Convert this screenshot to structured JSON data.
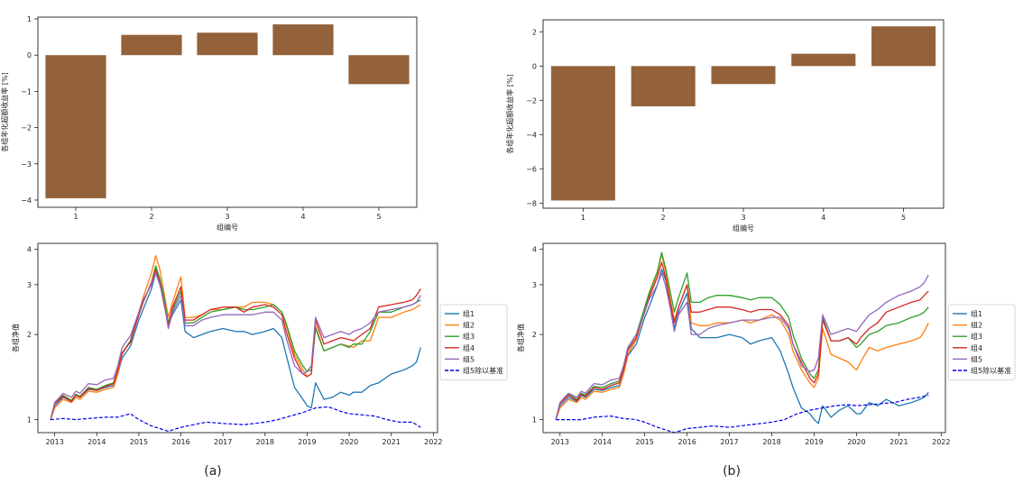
{
  "colors": {
    "bar": "#93623a",
    "axis": "#222222",
    "series": [
      "#1f77b4",
      "#ff7f0e",
      "#2ca02c",
      "#d62728",
      "#9467bd"
    ],
    "benchmark": "#0000ee"
  },
  "panel_labels": [
    "(a)",
    "(b)"
  ],
  "chart_data": [
    {
      "id": "a-bar",
      "type": "bar",
      "categories": [
        "1",
        "2",
        "3",
        "4",
        "5"
      ],
      "values": [
        -3.95,
        0.56,
        0.62,
        0.85,
        -0.8
      ],
      "xlabel": "组编号",
      "ylabel": "各组年化超额收益率 [%]",
      "ylim": [
        -4.2,
        1.05
      ],
      "yticks": [
        -4,
        -3,
        -2,
        -1,
        0,
        1
      ],
      "ytick_labels": [
        "−4",
        "−3",
        "−2",
        "−1",
        "0",
        "1"
      ]
    },
    {
      "id": "b-bar",
      "type": "bar",
      "categories": [
        "1",
        "2",
        "3",
        "4",
        "5"
      ],
      "values": [
        -7.85,
        -2.35,
        -1.05,
        0.72,
        2.32
      ],
      "xlabel": "组编号",
      "ylabel": "各组年化超额收益率 [%]",
      "ylim": [
        -8.3,
        2.7
      ],
      "yticks": [
        -8,
        -6,
        -4,
        -2,
        0,
        2
      ],
      "ytick_labels": [
        "−8",
        "−6",
        "−4",
        "−2",
        "0",
        "2"
      ]
    },
    {
      "id": "a-line",
      "type": "line",
      "yscale": "log",
      "ylabel": "各组净值",
      "xlim": [
        2012.6,
        2022.1
      ],
      "ylim": [
        0.9,
        4.2
      ],
      "xticks": [
        2013,
        2014,
        2015,
        2016,
        2017,
        2018,
        2019,
        2020,
        2021,
        2022
      ],
      "xtick_labels": [
        "2013",
        "2014",
        "2015",
        "2016",
        "2017",
        "2018",
        "2019",
        "2020",
        "2021",
        "2022"
      ],
      "yticks": [
        1,
        2,
        3,
        4
      ],
      "ytick_labels": [
        "1",
        "2",
        "3",
        "4"
      ],
      "x": [
        2012.9,
        2013.0,
        2013.2,
        2013.4,
        2013.5,
        2013.6,
        2013.8,
        2014.0,
        2014.2,
        2014.4,
        2014.5,
        2014.6,
        2014.8,
        2015.0,
        2015.1,
        2015.3,
        2015.4,
        2015.5,
        2015.6,
        2015.7,
        2015.8,
        2016.0,
        2016.1,
        2016.3,
        2016.5,
        2016.7,
        2017.0,
        2017.3,
        2017.5,
        2017.7,
        2018.0,
        2018.2,
        2018.4,
        2018.5,
        2018.7,
        2018.9,
        2019.0,
        2019.1,
        2019.2,
        2019.4,
        2019.6,
        2019.8,
        2020.0,
        2020.1,
        2020.3,
        2020.5,
        2020.7,
        2021.0,
        2021.3,
        2021.5,
        2021.6,
        2021.7
      ],
      "series": [
        {
          "name": "组1",
          "values": [
            1.0,
            1.12,
            1.2,
            1.16,
            1.22,
            1.2,
            1.28,
            1.27,
            1.3,
            1.32,
            1.45,
            1.65,
            1.82,
            2.25,
            2.45,
            2.9,
            3.3,
            3.05,
            2.6,
            2.15,
            2.35,
            2.65,
            2.05,
            1.95,
            2.0,
            2.05,
            2.1,
            2.05,
            2.05,
            2.0,
            2.05,
            2.1,
            1.95,
            1.7,
            1.3,
            1.18,
            1.12,
            1.1,
            1.35,
            1.18,
            1.2,
            1.25,
            1.22,
            1.25,
            1.25,
            1.32,
            1.35,
            1.45,
            1.5,
            1.55,
            1.6,
            1.8
          ]
        },
        {
          "name": "组2",
          "values": [
            1.0,
            1.1,
            1.18,
            1.15,
            1.2,
            1.18,
            1.26,
            1.25,
            1.28,
            1.3,
            1.45,
            1.7,
            1.9,
            2.4,
            2.7,
            3.3,
            3.8,
            3.4,
            2.8,
            2.3,
            2.6,
            3.2,
            2.3,
            2.3,
            2.35,
            2.45,
            2.45,
            2.5,
            2.5,
            2.6,
            2.6,
            2.55,
            2.4,
            2.15,
            1.7,
            1.5,
            1.42,
            1.45,
            2.15,
            1.75,
            1.8,
            1.85,
            1.82,
            1.8,
            1.9,
            1.9,
            2.3,
            2.3,
            2.4,
            2.45,
            2.5,
            2.55
          ]
        },
        {
          "name": "组3",
          "values": [
            1.0,
            1.15,
            1.22,
            1.17,
            1.23,
            1.21,
            1.3,
            1.28,
            1.32,
            1.35,
            1.5,
            1.72,
            1.9,
            2.35,
            2.6,
            3.05,
            3.5,
            3.15,
            2.7,
            2.2,
            2.45,
            2.85,
            2.2,
            2.2,
            2.3,
            2.4,
            2.45,
            2.5,
            2.45,
            2.45,
            2.5,
            2.55,
            2.4,
            2.2,
            1.75,
            1.55,
            1.48,
            1.5,
            2.1,
            1.75,
            1.8,
            1.85,
            1.8,
            1.85,
            1.85,
            2.05,
            2.4,
            2.4,
            2.5,
            2.55,
            2.6,
            2.65
          ]
        },
        {
          "name": "组4",
          "values": [
            1.0,
            1.14,
            1.21,
            1.16,
            1.22,
            1.2,
            1.29,
            1.27,
            1.31,
            1.34,
            1.5,
            1.72,
            1.88,
            2.35,
            2.6,
            3.05,
            3.4,
            3.05,
            2.55,
            2.15,
            2.5,
            2.95,
            2.25,
            2.25,
            2.35,
            2.45,
            2.5,
            2.5,
            2.4,
            2.5,
            2.55,
            2.5,
            2.35,
            2.05,
            1.65,
            1.45,
            1.42,
            1.45,
            2.25,
            1.85,
            1.9,
            1.95,
            1.92,
            1.9,
            2.0,
            2.1,
            2.5,
            2.55,
            2.6,
            2.65,
            2.75,
            2.9
          ]
        },
        {
          "name": "组5",
          "values": [
            1.0,
            1.15,
            1.24,
            1.2,
            1.26,
            1.24,
            1.34,
            1.33,
            1.38,
            1.4,
            1.55,
            1.8,
            1.98,
            2.4,
            2.65,
            3.0,
            3.3,
            3.0,
            2.6,
            2.1,
            2.4,
            2.75,
            2.15,
            2.15,
            2.25,
            2.3,
            2.35,
            2.35,
            2.35,
            2.35,
            2.4,
            2.4,
            2.25,
            1.95,
            1.55,
            1.45,
            1.48,
            1.55,
            2.3,
            1.95,
            2.0,
            2.05,
            2.0,
            2.05,
            2.1,
            2.2,
            2.4,
            2.45,
            2.5,
            2.55,
            2.6,
            2.75
          ]
        }
      ],
      "benchmark": {
        "name": "组5除以基准",
        "x": [
          2012.9,
          2013.2,
          2013.5,
          2013.8,
          2014.2,
          2014.5,
          2014.8,
          2015.0,
          2015.3,
          2015.5,
          2015.7,
          2016.0,
          2016.3,
          2016.6,
          2017.0,
          2017.5,
          2018.0,
          2018.3,
          2018.6,
          2018.9,
          2019.2,
          2019.5,
          2019.8,
          2020.0,
          2020.3,
          2020.6,
          2020.9,
          2021.2,
          2021.5,
          2021.7
        ],
        "values": [
          1.0,
          1.01,
          1.0,
          1.01,
          1.02,
          1.02,
          1.05,
          1.0,
          0.95,
          0.93,
          0.91,
          0.94,
          0.96,
          0.98,
          0.97,
          0.96,
          0.98,
          1.0,
          1.03,
          1.06,
          1.1,
          1.11,
          1.07,
          1.05,
          1.04,
          1.03,
          1.0,
          0.98,
          0.98,
          0.94
        ]
      },
      "legend": [
        "组1",
        "组2",
        "组3",
        "组4",
        "组5",
        "组5除以基准"
      ]
    },
    {
      "id": "b-line",
      "type": "line",
      "yscale": "log",
      "ylabel": "各组净值",
      "xlim": [
        2012.6,
        2022.1
      ],
      "ylim": [
        0.9,
        4.2
      ],
      "xticks": [
        2013,
        2014,
        2015,
        2016,
        2017,
        2018,
        2019,
        2020,
        2021,
        2022
      ],
      "xtick_labels": [
        "2013",
        "2014",
        "2015",
        "2016",
        "2017",
        "2018",
        "2019",
        "2020",
        "2021",
        "2022"
      ],
      "yticks": [
        1,
        2,
        3,
        4
      ],
      "ytick_labels": [
        "1",
        "2",
        "3",
        "4"
      ],
      "x": [
        2012.9,
        2013.0,
        2013.2,
        2013.4,
        2013.5,
        2013.6,
        2013.8,
        2014.0,
        2014.2,
        2014.4,
        2014.5,
        2014.6,
        2014.8,
        2015.0,
        2015.1,
        2015.3,
        2015.4,
        2015.5,
        2015.6,
        2015.7,
        2015.8,
        2016.0,
        2016.1,
        2016.3,
        2016.5,
        2016.7,
        2017.0,
        2017.3,
        2017.5,
        2017.7,
        2018.0,
        2018.2,
        2018.4,
        2018.5,
        2018.7,
        2018.9,
        2019.0,
        2019.1,
        2019.2,
        2019.4,
        2019.6,
        2019.8,
        2020.0,
        2020.1,
        2020.3,
        2020.5,
        2020.7,
        2021.0,
        2021.3,
        2021.5,
        2021.6,
        2021.7
      ],
      "series": [
        {
          "name": "组1",
          "values": [
            1.0,
            1.12,
            1.2,
            1.16,
            1.22,
            1.2,
            1.28,
            1.27,
            1.3,
            1.32,
            1.45,
            1.68,
            1.85,
            2.3,
            2.5,
            3.0,
            3.4,
            3.1,
            2.6,
            2.1,
            2.4,
            2.8,
            2.1,
            1.95,
            1.95,
            1.95,
            2.0,
            1.95,
            1.85,
            1.9,
            1.95,
            1.75,
            1.45,
            1.3,
            1.1,
            1.05,
            1.0,
            0.97,
            1.12,
            1.02,
            1.08,
            1.12,
            1.05,
            1.05,
            1.15,
            1.12,
            1.18,
            1.12,
            1.15,
            1.18,
            1.2,
            1.25
          ]
        },
        {
          "name": "组2",
          "values": [
            1.0,
            1.1,
            1.18,
            1.15,
            1.2,
            1.18,
            1.26,
            1.25,
            1.28,
            1.3,
            1.45,
            1.7,
            1.92,
            2.45,
            2.75,
            3.3,
            3.85,
            3.3,
            2.7,
            2.25,
            2.5,
            3.0,
            2.2,
            2.15,
            2.15,
            2.2,
            2.2,
            2.25,
            2.2,
            2.25,
            2.35,
            2.25,
            2.0,
            1.75,
            1.5,
            1.35,
            1.3,
            1.4,
            2.1,
            1.7,
            1.65,
            1.6,
            1.5,
            1.6,
            1.8,
            1.75,
            1.8,
            1.85,
            1.9,
            1.95,
            2.05,
            2.2
          ]
        },
        {
          "name": "组3",
          "values": [
            1.0,
            1.15,
            1.23,
            1.18,
            1.24,
            1.22,
            1.31,
            1.3,
            1.34,
            1.37,
            1.52,
            1.78,
            2.0,
            2.5,
            2.8,
            3.35,
            3.9,
            3.4,
            2.85,
            2.4,
            2.7,
            3.3,
            2.6,
            2.6,
            2.7,
            2.75,
            2.75,
            2.7,
            2.65,
            2.7,
            2.7,
            2.55,
            2.3,
            2.0,
            1.65,
            1.45,
            1.4,
            1.5,
            2.3,
            1.9,
            1.9,
            1.95,
            1.8,
            1.85,
            2.0,
            2.05,
            2.15,
            2.2,
            2.3,
            2.35,
            2.4,
            2.5
          ]
        },
        {
          "name": "组4",
          "values": [
            1.0,
            1.14,
            1.22,
            1.17,
            1.23,
            1.21,
            1.3,
            1.28,
            1.32,
            1.35,
            1.5,
            1.75,
            1.95,
            2.4,
            2.7,
            3.2,
            3.6,
            3.15,
            2.6,
            2.2,
            2.5,
            3.0,
            2.4,
            2.4,
            2.45,
            2.5,
            2.5,
            2.45,
            2.4,
            2.45,
            2.45,
            2.35,
            2.15,
            1.85,
            1.6,
            1.4,
            1.35,
            1.45,
            2.25,
            1.9,
            1.9,
            1.95,
            1.85,
            1.95,
            2.1,
            2.2,
            2.4,
            2.5,
            2.6,
            2.65,
            2.75,
            2.85
          ]
        },
        {
          "name": "组5",
          "values": [
            1.0,
            1.15,
            1.24,
            1.2,
            1.26,
            1.24,
            1.34,
            1.33,
            1.38,
            1.4,
            1.55,
            1.8,
            2.0,
            2.4,
            2.65,
            3.0,
            3.3,
            2.95,
            2.5,
            2.05,
            2.35,
            2.6,
            2.0,
            2.0,
            2.1,
            2.15,
            2.2,
            2.25,
            2.25,
            2.25,
            2.3,
            2.3,
            2.1,
            1.85,
            1.55,
            1.48,
            1.5,
            1.65,
            2.35,
            2.0,
            2.05,
            2.1,
            2.05,
            2.15,
            2.35,
            2.45,
            2.6,
            2.75,
            2.85,
            2.95,
            3.05,
            3.25
          ]
        }
      ],
      "benchmark": {
        "name": "组5除以基准",
        "x": [
          2012.9,
          2013.2,
          2013.5,
          2013.8,
          2014.2,
          2014.5,
          2014.8,
          2015.0,
          2015.3,
          2015.5,
          2015.7,
          2016.0,
          2016.3,
          2016.6,
          2017.0,
          2017.5,
          2018.0,
          2018.3,
          2018.6,
          2018.9,
          2019.2,
          2019.5,
          2019.8,
          2020.0,
          2020.3,
          2020.6,
          2020.9,
          2021.2,
          2021.5,
          2021.7
        ],
        "values": [
          1.0,
          1.0,
          1.0,
          1.02,
          1.03,
          1.01,
          1.0,
          0.98,
          0.94,
          0.92,
          0.9,
          0.93,
          0.94,
          0.95,
          0.94,
          0.96,
          0.98,
          1.0,
          1.05,
          1.08,
          1.1,
          1.12,
          1.13,
          1.12,
          1.13,
          1.14,
          1.15,
          1.18,
          1.2,
          1.22
        ]
      },
      "legend": [
        "组1",
        "组2",
        "组3",
        "组4",
        "组5",
        "组5除以基准"
      ]
    }
  ]
}
